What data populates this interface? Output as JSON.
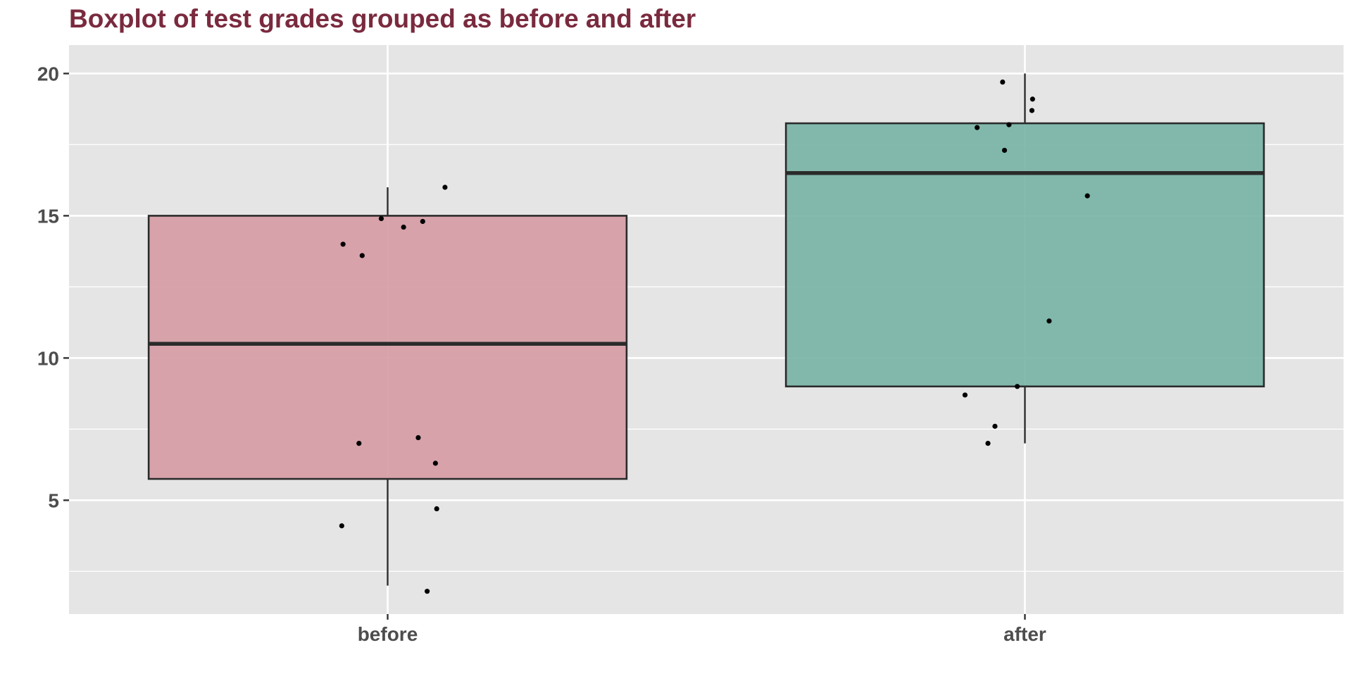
{
  "chart_data": {
    "type": "boxplot",
    "title": "Boxplot of test grades grouped as before and after",
    "xlabel": "",
    "ylabel": "",
    "ylim": [
      1,
      21
    ],
    "yticks": [
      5,
      10,
      15,
      20
    ],
    "grid": true,
    "categories": [
      "before",
      "after"
    ],
    "boxes": [
      {
        "category": "before",
        "q1": 5.75,
        "median": 10.5,
        "q3": 15.0,
        "whisker_low": 2.0,
        "whisker_high": 16.0,
        "fill": "#d59aa3"
      },
      {
        "category": "after",
        "q1": 9.0,
        "median": 16.5,
        "q3": 18.25,
        "whisker_low": 7.0,
        "whisker_high": 20.0,
        "fill": "#77b3a5"
      }
    ],
    "points": [
      {
        "category": "before",
        "jitter": -0.07,
        "y": 14.0
      },
      {
        "category": "before",
        "jitter": -0.04,
        "y": 13.6
      },
      {
        "category": "before",
        "jitter": -0.01,
        "y": 14.9
      },
      {
        "category": "before",
        "jitter": 0.025,
        "y": 14.6
      },
      {
        "category": "before",
        "jitter": 0.055,
        "y": 14.8
      },
      {
        "category": "before",
        "jitter": 0.09,
        "y": 16.0
      },
      {
        "category": "before",
        "jitter": -0.045,
        "y": 7.0
      },
      {
        "category": "before",
        "jitter": 0.048,
        "y": 7.2
      },
      {
        "category": "before",
        "jitter": 0.075,
        "y": 6.3
      },
      {
        "category": "before",
        "jitter": 0.077,
        "y": 4.7
      },
      {
        "category": "before",
        "jitter": -0.072,
        "y": 4.1
      },
      {
        "category": "before",
        "jitter": 0.062,
        "y": 1.8
      },
      {
        "category": "after",
        "jitter": -0.035,
        "y": 19.7
      },
      {
        "category": "after",
        "jitter": 0.012,
        "y": 19.1
      },
      {
        "category": "after",
        "jitter": 0.011,
        "y": 18.7
      },
      {
        "category": "after",
        "jitter": -0.075,
        "y": 18.1
      },
      {
        "category": "after",
        "jitter": -0.025,
        "y": 18.2
      },
      {
        "category": "after",
        "jitter": -0.032,
        "y": 17.3
      },
      {
        "category": "after",
        "jitter": 0.098,
        "y": 15.7
      },
      {
        "category": "after",
        "jitter": 0.038,
        "y": 11.3
      },
      {
        "category": "after",
        "jitter": -0.012,
        "y": 9.0
      },
      {
        "category": "after",
        "jitter": -0.094,
        "y": 8.7
      },
      {
        "category": "after",
        "jitter": -0.047,
        "y": 7.6
      },
      {
        "category": "after",
        "jitter": -0.058,
        "y": 7.0
      }
    ],
    "colors": {
      "panel": "#e5e5e5",
      "grid": "#ffffff",
      "median": "#2b2b2b",
      "outline": "#2b2b2b",
      "point": "#000000",
      "title": "#7a2a3e"
    }
  }
}
